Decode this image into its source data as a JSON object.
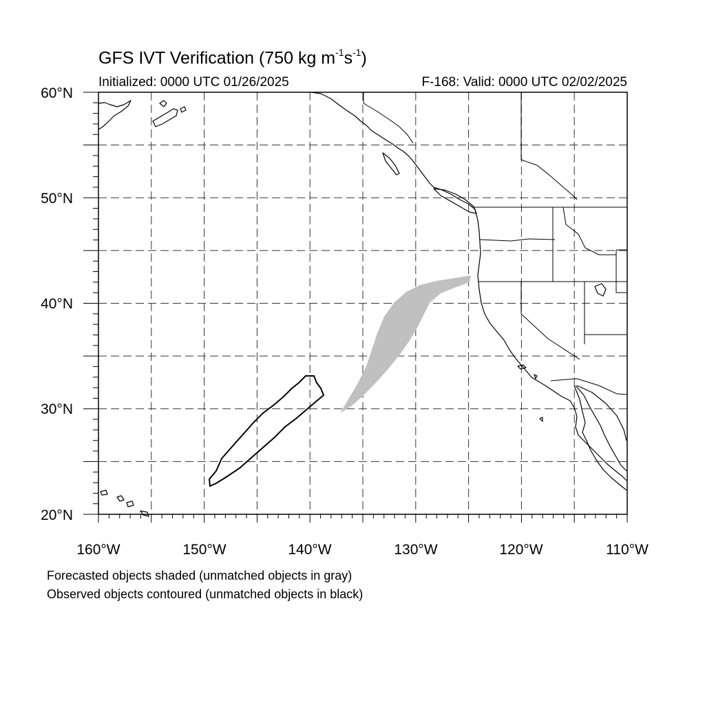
{
  "title": {
    "main": "GFS IVT Verification (750 kg m",
    "exp1": "-1",
    "mid": "s",
    "exp2": "-1",
    "end": ")"
  },
  "subtitle": {
    "initialized": "Initialized: 0000 UTC 01/26/2025",
    "valid": "F-168: Valid: 0000 UTC 02/02/2025"
  },
  "map": {
    "lon_range": [
      -160,
      -110
    ],
    "lat_range": [
      20,
      60
    ],
    "grid_interval_deg": 5,
    "grid_style": "dashed",
    "lat_labels": [
      "20°N",
      "30°N",
      "40°N",
      "50°N",
      "60°N"
    ],
    "lon_labels": [
      "160°W",
      "150°W",
      "140°W",
      "130°W",
      "120°W",
      "110°W"
    ],
    "forecast_fill_color": "#c0c0c0",
    "observed_line_color": "#000000"
  },
  "legend": {
    "forecast": "Forecasted objects shaded (unmatched objects in gray)",
    "observed": "Observed objects contoured (unmatched objects in black)"
  }
}
